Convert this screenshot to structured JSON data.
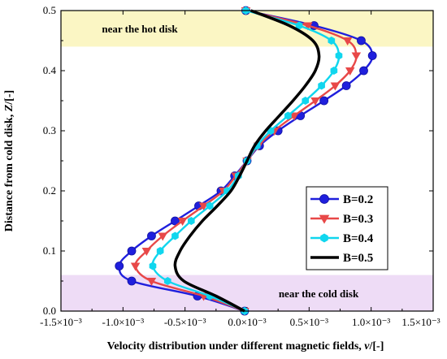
{
  "chart_data": {
    "type": "line",
    "xlabel": "Velocity distribution under different magnetic fields, ",
    "xlabel_var": "v",
    "xlabel_unit": "/[-]",
    "ylabel": "Distance from cold disk, ",
    "ylabel_var": "Z",
    "ylabel_unit": "/[-]",
    "xlim": [
      -0.0015,
      0.0015
    ],
    "ylim": [
      0.0,
      0.5
    ],
    "x_ticks": [
      {
        "value": -0.0015,
        "label": "-1.5×10⁻³"
      },
      {
        "value": -0.001,
        "label": "-1.0×10⁻³"
      },
      {
        "value": -0.0005,
        "label": "-0.5×10⁻³"
      },
      {
        "value": 0.0,
        "label": "0.0×10⁻³"
      },
      {
        "value": 0.0005,
        "label": "0.5×10⁻³"
      },
      {
        "value": 0.001,
        "label": "1.0×10⁻³"
      },
      {
        "value": 0.0015,
        "label": "1.5×10⁻³"
      }
    ],
    "y_ticks": [
      {
        "value": 0.0,
        "label": "0.0"
      },
      {
        "value": 0.1,
        "label": "0.1"
      },
      {
        "value": 0.2,
        "label": "0.2"
      },
      {
        "value": 0.3,
        "label": "0.3"
      },
      {
        "value": 0.4,
        "label": "0.4"
      },
      {
        "value": 0.5,
        "label": "0.5"
      }
    ],
    "regions": [
      {
        "label": "near the hot disk",
        "y_range": [
          0.44,
          0.5
        ],
        "color": "#fbf6c4"
      },
      {
        "label": "near the cold disk",
        "y_range": [
          0.0,
          0.06
        ],
        "color": "#eedcf6"
      }
    ],
    "legend_position": "lower-right",
    "series": [
      {
        "name": "B=0.2",
        "color": "#1f1fdd",
        "marker": "circle",
        "points": [
          [
            -2e-05,
            0.0
          ],
          [
            -0.0004,
            0.025
          ],
          [
            -0.00093,
            0.05
          ],
          [
            -0.00103,
            0.075
          ],
          [
            -0.00093,
            0.1
          ],
          [
            -0.00077,
            0.125
          ],
          [
            -0.00058,
            0.15
          ],
          [
            -0.00039,
            0.175
          ],
          [
            -0.00021,
            0.2
          ],
          [
            -0.0001,
            0.225
          ],
          [
            0.0,
            0.25
          ],
          [
            0.0001,
            0.275
          ],
          [
            0.00025,
            0.3
          ],
          [
            0.00043,
            0.325
          ],
          [
            0.00062,
            0.35
          ],
          [
            0.0008,
            0.375
          ],
          [
            0.00094,
            0.4
          ],
          [
            0.00101,
            0.425
          ],
          [
            0.00092,
            0.45
          ],
          [
            0.00054,
            0.475
          ],
          [
            -1e-05,
            0.5
          ]
        ]
      },
      {
        "name": "B=0.3",
        "color": "#e84848",
        "marker": "triangle-down",
        "points": [
          [
            -2e-05,
            0.0
          ],
          [
            -0.00035,
            0.025
          ],
          [
            -0.00077,
            0.05
          ],
          [
            -0.0009,
            0.075
          ],
          [
            -0.00081,
            0.1
          ],
          [
            -0.00068,
            0.125
          ],
          [
            -0.00052,
            0.15
          ],
          [
            -0.00035,
            0.175
          ],
          [
            -0.00019,
            0.2
          ],
          [
            -9e-05,
            0.225
          ],
          [
            0.0,
            0.25
          ],
          [
            9e-05,
            0.275
          ],
          [
            0.00022,
            0.3
          ],
          [
            0.00038,
            0.325
          ],
          [
            0.00055,
            0.35
          ],
          [
            0.00071,
            0.375
          ],
          [
            0.00083,
            0.4
          ],
          [
            0.00088,
            0.425
          ],
          [
            0.00081,
            0.45
          ],
          [
            0.00049,
            0.475
          ],
          [
            -1e-05,
            0.5
          ]
        ]
      },
      {
        "name": "B=0.4",
        "color": "#10d6ee",
        "marker": "hexagon",
        "points": [
          [
            -2e-05,
            0.0
          ],
          [
            -0.0003,
            0.025
          ],
          [
            -0.00064,
            0.05
          ],
          [
            -0.00076,
            0.075
          ],
          [
            -0.0007,
            0.1
          ],
          [
            -0.00058,
            0.125
          ],
          [
            -0.00045,
            0.15
          ],
          [
            -0.0003,
            0.175
          ],
          [
            -0.00016,
            0.2
          ],
          [
            -7e-05,
            0.225
          ],
          [
            0.0,
            0.25
          ],
          [
            8e-05,
            0.275
          ],
          [
            0.00019,
            0.3
          ],
          [
            0.00033,
            0.325
          ],
          [
            0.00047,
            0.35
          ],
          [
            0.0006,
            0.375
          ],
          [
            0.0007,
            0.4
          ],
          [
            0.00074,
            0.425
          ],
          [
            0.00068,
            0.45
          ],
          [
            0.00042,
            0.475
          ],
          [
            -1e-05,
            0.5
          ]
        ]
      },
      {
        "name": "B=0.5",
        "color": "#000000",
        "marker": "none",
        "points": [
          [
            -2e-05,
            0.0
          ],
          [
            -0.00025,
            0.025
          ],
          [
            -0.00051,
            0.05
          ],
          [
            -0.00058,
            0.075
          ],
          [
            -0.00054,
            0.1
          ],
          [
            -0.00046,
            0.125
          ],
          [
            -0.00036,
            0.15
          ],
          [
            -0.00024,
            0.175
          ],
          [
            -0.00013,
            0.2
          ],
          [
            -6e-05,
            0.225
          ],
          [
            0.0,
            0.25
          ],
          [
            6e-05,
            0.275
          ],
          [
            0.00015,
            0.3
          ],
          [
            0.00026,
            0.325
          ],
          [
            0.00037,
            0.35
          ],
          [
            0.00047,
            0.375
          ],
          [
            0.00055,
            0.4
          ],
          [
            0.00058,
            0.425
          ],
          [
            0.00053,
            0.45
          ],
          [
            0.00034,
            0.475
          ],
          [
            3e-05,
            0.5
          ]
        ]
      }
    ]
  }
}
